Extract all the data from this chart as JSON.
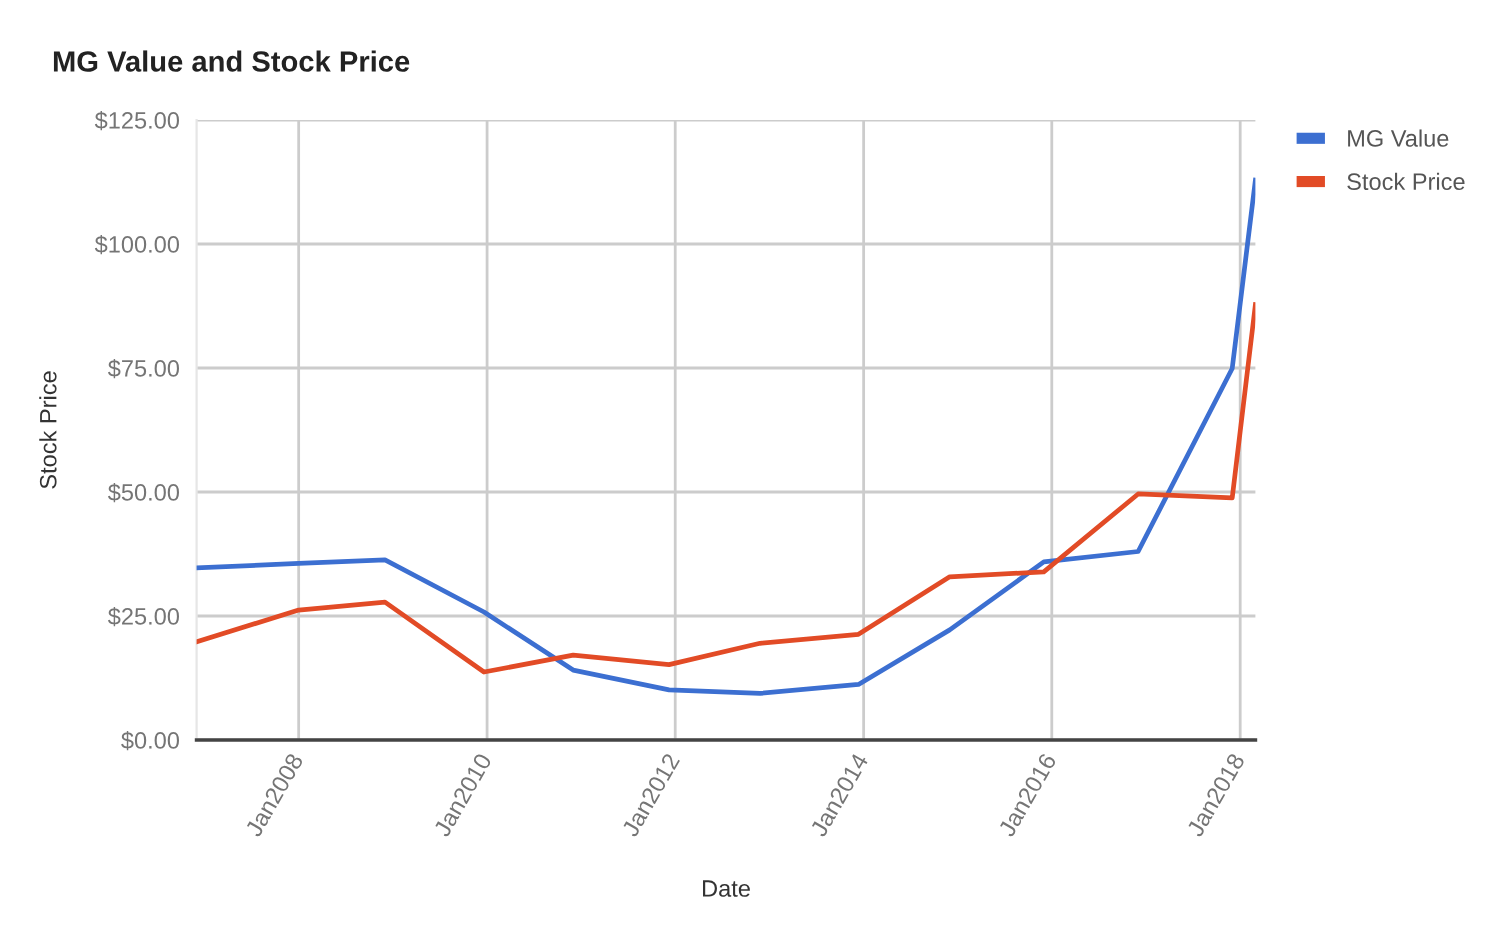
{
  "chart_data": {
    "type": "line",
    "title": "MG Value and Stock Price",
    "xlabel": "Date",
    "ylabel": "Stock Price",
    "x": [
      "2006-12-01",
      "2008-01-01",
      "2008-12-01",
      "2009-12-20",
      "2010-12-01",
      "2011-12-08",
      "2012-11-25",
      "2013-12-12",
      "2014-12-01",
      "2015-12-01",
      "2016-12-01",
      "2017-12-01",
      "2018-03-01"
    ],
    "series": [
      {
        "name": "MG Value",
        "color": "#3c6fd1",
        "values": [
          34.7,
          35.6,
          36.3,
          25.8,
          14.1,
          10.1,
          9.4,
          11.2,
          22.2,
          35.9,
          38.0,
          74.9,
          112.9
        ]
      },
      {
        "name": "Stock Price",
        "color": "#e24b26",
        "values": [
          19.8,
          26.2,
          27.8,
          13.7,
          17.1,
          15.2,
          19.5,
          21.3,
          32.9,
          33.9,
          49.6,
          48.8,
          87.8
        ]
      }
    ],
    "xlim": [
      "2006-12-01",
      "2018-03-01"
    ],
    "xticks": [
      {
        "value": "2008-01-01",
        "label": "Jan2008"
      },
      {
        "value": "2010-01-01",
        "label": "Jan2010"
      },
      {
        "value": "2012-01-01",
        "label": "Jan2012"
      },
      {
        "value": "2014-01-01",
        "label": "Jan2014"
      },
      {
        "value": "2016-01-01",
        "label": "Jan2016"
      },
      {
        "value": "2018-01-01",
        "label": "Jan2018"
      }
    ],
    "ylim": [
      0,
      125
    ],
    "yticks": [
      {
        "value": 0,
        "label": "$0.00"
      },
      {
        "value": 25,
        "label": "$25.00"
      },
      {
        "value": 50,
        "label": "$50.00"
      },
      {
        "value": 75,
        "label": "$75.00"
      },
      {
        "value": 100,
        "label": "$100.00"
      },
      {
        "value": 125,
        "label": "$125.00"
      }
    ],
    "grid": true,
    "legend": "top right",
    "marker": "none",
    "line_style": "solid"
  }
}
